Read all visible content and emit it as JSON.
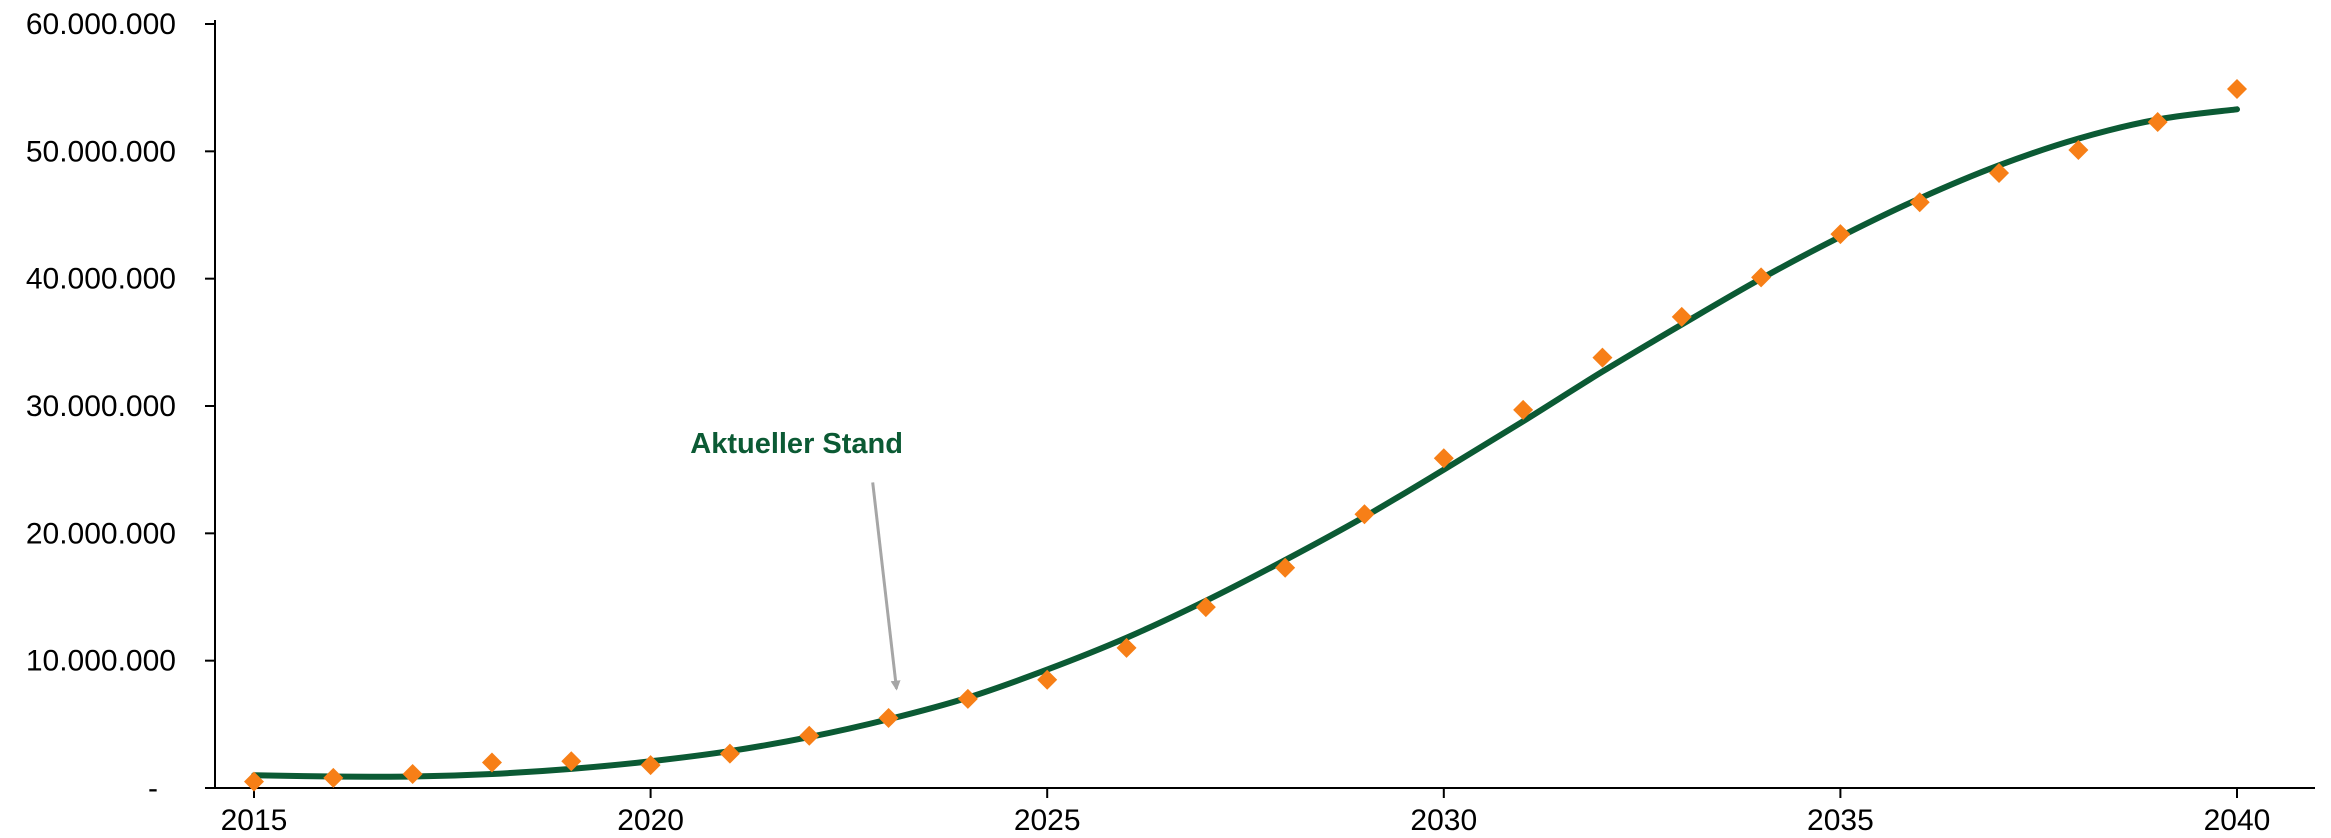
{
  "chart_data": {
    "type": "scatter",
    "title": "",
    "xlabel": "",
    "ylabel": "",
    "xlim": [
      2015,
      2040
    ],
    "ylim": [
      0,
      60000000
    ],
    "grid": false,
    "legend": "none",
    "x_ticks": [
      2015,
      2020,
      2025,
      2030,
      2035,
      2040
    ],
    "x_tick_labels": [
      "2015",
      "2020",
      "2025",
      "2030",
      "2035",
      "2040"
    ],
    "y_ticks": [
      0,
      10000000,
      20000000,
      30000000,
      40000000,
      50000000,
      60000000
    ],
    "y_tick_labels": [
      "-",
      "10.000.000",
      "20.000.000",
      "30.000.000",
      "40.000.000",
      "50.000.000",
      "60.000.000"
    ],
    "series": [
      {
        "kind": "points",
        "marker": "diamond",
        "color": "#f77f17",
        "x": [
          2015,
          2016,
          2017,
          2018,
          2019,
          2020,
          2021,
          2022,
          2023,
          2024,
          2025,
          2026,
          2027,
          2028,
          2029,
          2030,
          2031,
          2032,
          2033,
          2034,
          2035,
          2036,
          2037,
          2038,
          2039,
          2040
        ],
        "y": [
          500000,
          800000,
          1100000,
          2000000,
          2100000,
          1800000,
          2700000,
          4100000,
          5500000,
          7000000,
          8500000,
          11000000,
          14200000,
          17300000,
          21500000,
          25900000,
          29700000,
          33800000,
          37000000,
          40100000,
          43500000,
          46000000,
          48300000,
          50100000,
          52300000,
          54900000
        ]
      },
      {
        "kind": "trend-line",
        "color": "#0b5a34",
        "x": [
          2015,
          2016,
          2017,
          2018,
          2019,
          2020,
          2021,
          2022,
          2023,
          2024,
          2025,
          2026,
          2027,
          2028,
          2029,
          2030,
          2031,
          2032,
          2033,
          2034,
          2035,
          2036,
          2037,
          2038,
          2039,
          2040
        ],
        "y": [
          1000000,
          900000,
          900000,
          1100000,
          1500000,
          2100000,
          2900000,
          4000000,
          5400000,
          7100000,
          9300000,
          11800000,
          14700000,
          17900000,
          21300000,
          25000000,
          28800000,
          32700000,
          36400000,
          40000000,
          43300000,
          46300000,
          48900000,
          51000000,
          52500000,
          53300000
        ]
      }
    ],
    "annotations": [
      {
        "text": "Aktueller Stand",
        "color": "#0b5a34",
        "arrow_color": "#a6a6a6",
        "label_x": 2020.5,
        "label_y": 26300000,
        "arrow_start_x": 2022.8,
        "arrow_start_y": 24000000,
        "arrow_end_x": 2023.1,
        "arrow_end_y": 7800000
      }
    ]
  }
}
